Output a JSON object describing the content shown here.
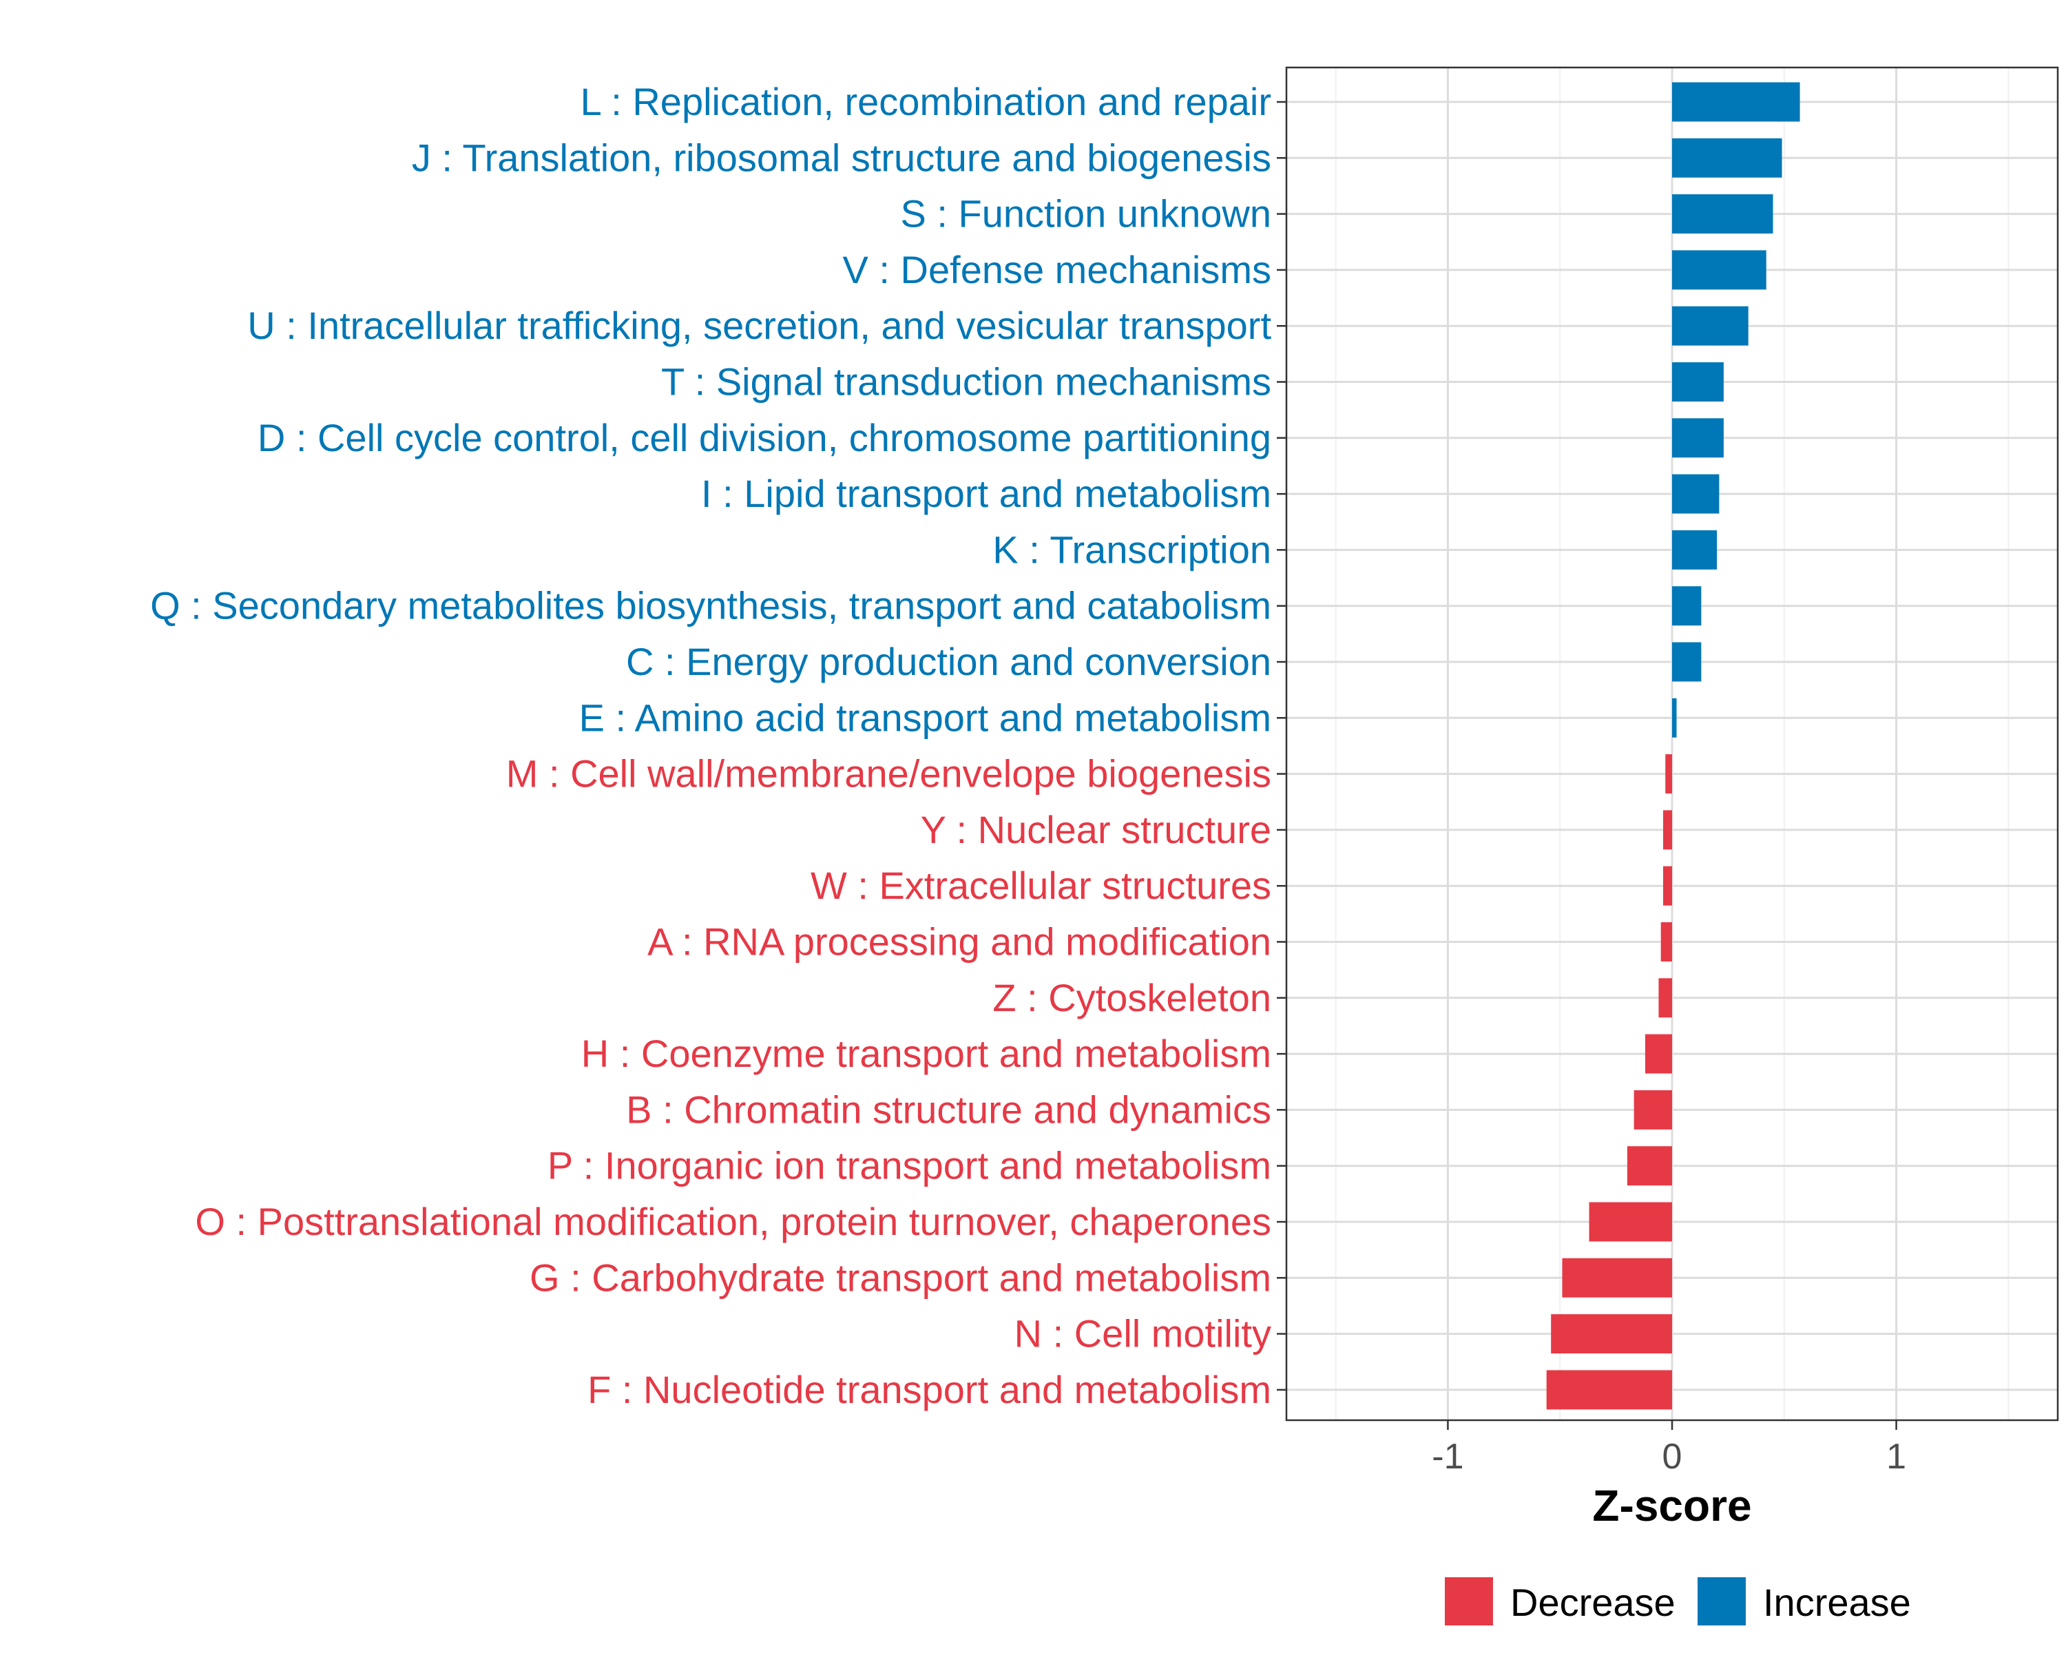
{
  "chart_data": {
    "type": "bar",
    "orientation": "horizontal",
    "xlabel": "Z-score",
    "ylabel": "",
    "xlim": [
      -1.72,
      1.72
    ],
    "xticks": [
      -1,
      0,
      1
    ],
    "xtick_labels": [
      "-1",
      "0",
      "1"
    ],
    "grid": true,
    "legend_position": "bottom",
    "colors": {
      "Decrease": "#e63946",
      "Increase": "#0077b6"
    },
    "legend": [
      {
        "name": "Decrease",
        "color": "#e63946"
      },
      {
        "name": "Increase",
        "color": "#0077b6"
      }
    ],
    "categories": [
      "L : Replication, recombination and repair",
      "J : Translation, ribosomal structure and biogenesis",
      "S : Function unknown",
      "V : Defense mechanisms",
      "U : Intracellular trafficking, secretion, and vesicular transport",
      "T : Signal transduction mechanisms",
      "D : Cell cycle control, cell division, chromosome partitioning",
      "I : Lipid transport and metabolism",
      "K : Transcription",
      "Q : Secondary metabolites biosynthesis, transport and catabolism",
      "C : Energy production and conversion",
      "E : Amino acid transport and metabolism",
      "M : Cell wall/membrane/envelope biogenesis",
      "Y : Nuclear structure",
      "W : Extracellular structures",
      "A : RNA processing and modification",
      "Z : Cytoskeleton",
      "H : Coenzyme transport and metabolism",
      "B : Chromatin structure and dynamics",
      "P : Inorganic ion transport and metabolism",
      "O : Posttranslational modification, protein turnover, chaperones",
      "G : Carbohydrate transport and metabolism",
      "N : Cell motility",
      "F : Nucleotide transport and metabolism"
    ],
    "values": [
      0.57,
      0.49,
      0.45,
      0.42,
      0.34,
      0.23,
      0.23,
      0.21,
      0.2,
      0.13,
      0.13,
      0.02,
      -0.03,
      -0.04,
      -0.04,
      -0.05,
      -0.06,
      -0.12,
      -0.17,
      -0.2,
      -0.37,
      -0.49,
      -0.54,
      -0.56
    ],
    "groups": [
      "Increase",
      "Increase",
      "Increase",
      "Increase",
      "Increase",
      "Increase",
      "Increase",
      "Increase",
      "Increase",
      "Increase",
      "Increase",
      "Increase",
      "Decrease",
      "Decrease",
      "Decrease",
      "Decrease",
      "Decrease",
      "Decrease",
      "Decrease",
      "Decrease",
      "Decrease",
      "Decrease",
      "Decrease",
      "Decrease"
    ]
  }
}
